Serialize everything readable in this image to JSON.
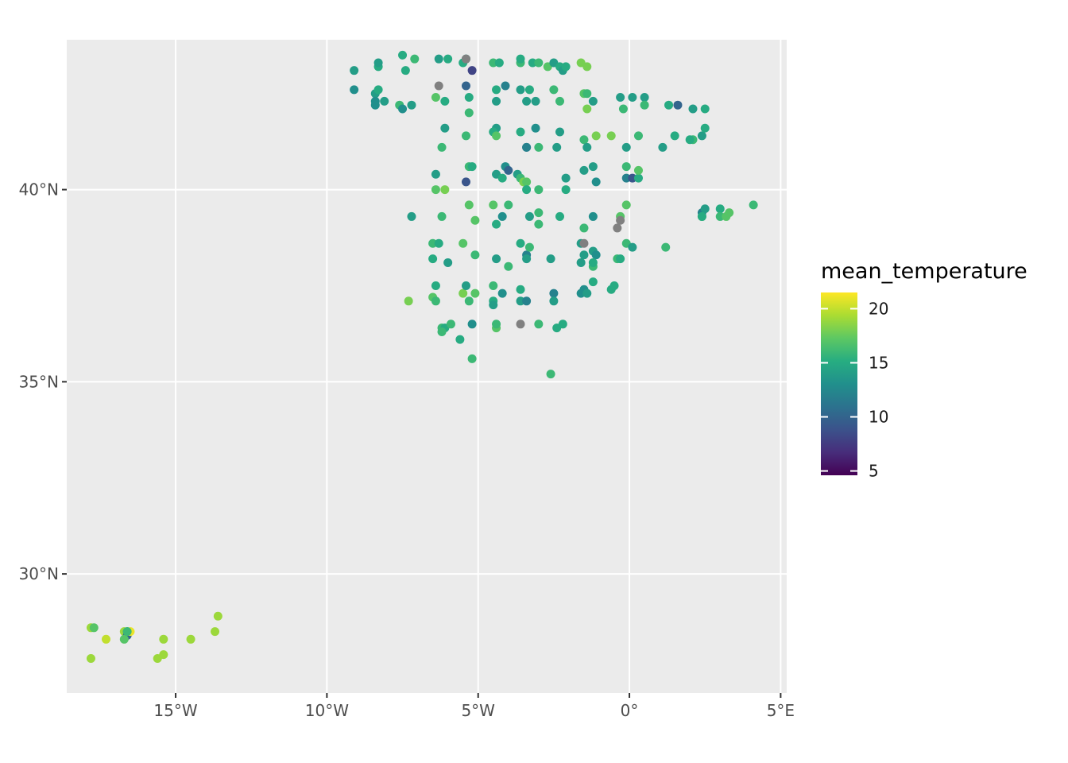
{
  "colors": {
    "panel_background": "#EBEBEB",
    "grid_line": "#FFFFFF",
    "na_value": "#808080",
    "palette": "viridis"
  },
  "axes": {
    "x_ticks": [
      {
        "value": -15,
        "label": "15°W"
      },
      {
        "value": -10,
        "label": "10°W"
      },
      {
        "value": -5,
        "label": "5°W"
      },
      {
        "value": 0,
        "label": "0°"
      },
      {
        "value": 5,
        "label": "5°E"
      }
    ],
    "y_ticks": [
      {
        "value": 30,
        "label": "30°N"
      },
      {
        "value": 35,
        "label": "35°N"
      },
      {
        "value": 40,
        "label": "40°N"
      }
    ],
    "xlim": [
      -18.6,
      5.2
    ],
    "ylim": [
      26.9,
      43.9
    ]
  },
  "legend": {
    "title": "mean_temperature",
    "placement": "right",
    "ticks": [
      {
        "value": 20,
        "label": "20"
      },
      {
        "value": 15,
        "label": "15"
      },
      {
        "value": 10,
        "label": "10"
      },
      {
        "value": 5,
        "label": "5"
      }
    ],
    "min": 4.6,
    "max": 21.5
  },
  "chart_data": {
    "type": "scatter",
    "x_unit": "longitude",
    "y_unit": "latitude",
    "points": [
      {
        "lon": -9.1,
        "lat": 43.1,
        "t": 14
      },
      {
        "lon": -9.1,
        "lat": 42.6,
        "t": 13
      },
      {
        "lon": -8.3,
        "lat": 43.2,
        "t": 15
      },
      {
        "lon": -8.3,
        "lat": 43.3,
        "t": 14
      },
      {
        "lon": -7.5,
        "lat": 43.5,
        "t": 15
      },
      {
        "lon": -7.4,
        "lat": 43.1,
        "t": 15
      },
      {
        "lon": -7.1,
        "lat": 43.4,
        "t": 16
      },
      {
        "lon": -8.4,
        "lat": 42.5,
        "t": 14
      },
      {
        "lon": -8.3,
        "lat": 42.6,
        "t": 15
      },
      {
        "lon": -8.4,
        "lat": 42.3,
        "t": 13
      },
      {
        "lon": -8.4,
        "lat": 42.2,
        "t": 13
      },
      {
        "lon": -8.1,
        "lat": 42.3,
        "t": 14
      },
      {
        "lon": -7.6,
        "lat": 42.2,
        "t": 16
      },
      {
        "lon": -7.5,
        "lat": 42.1,
        "t": 13
      },
      {
        "lon": -7.2,
        "lat": 42.2,
        "t": 14
      },
      {
        "lon": -6.3,
        "lat": 43.4,
        "t": 14
      },
      {
        "lon": -6.0,
        "lat": 43.4,
        "t": 15
      },
      {
        "lon": -5.4,
        "lat": 43.4,
        "t": 14
      },
      {
        "lon": -5.5,
        "lat": 43.3,
        "t": 15
      },
      {
        "lon": -5.4,
        "lat": 43.4,
        "t": null
      },
      {
        "lon": -5.2,
        "lat": 43.1,
        "t": 8
      },
      {
        "lon": -4.5,
        "lat": 43.3,
        "t": 16
      },
      {
        "lon": -4.3,
        "lat": 43.3,
        "t": 15
      },
      {
        "lon": -3.6,
        "lat": 43.3,
        "t": 16
      },
      {
        "lon": -3.6,
        "lat": 43.4,
        "t": 15
      },
      {
        "lon": -3.2,
        "lat": 43.3,
        "t": 15
      },
      {
        "lon": -3.0,
        "lat": 43.3,
        "t": 16
      },
      {
        "lon": -2.7,
        "lat": 43.2,
        "t": 17
      },
      {
        "lon": -2.5,
        "lat": 43.3,
        "t": 14
      },
      {
        "lon": -2.3,
        "lat": 43.2,
        "t": 15
      },
      {
        "lon": -2.2,
        "lat": 43.1,
        "t": 14
      },
      {
        "lon": -2.1,
        "lat": 43.2,
        "t": 15
      },
      {
        "lon": -1.6,
        "lat": 43.3,
        "t": 18
      },
      {
        "lon": -1.4,
        "lat": 43.2,
        "t": 18
      },
      {
        "lon": -6.4,
        "lat": 42.4,
        "t": 17
      },
      {
        "lon": -6.3,
        "lat": 42.7,
        "t": null
      },
      {
        "lon": -5.4,
        "lat": 42.7,
        "t": 10
      },
      {
        "lon": -5.3,
        "lat": 42.4,
        "t": 15
      },
      {
        "lon": -6.1,
        "lat": 42.3,
        "t": 15
      },
      {
        "lon": -5.3,
        "lat": 42.0,
        "t": 16
      },
      {
        "lon": -4.4,
        "lat": 42.6,
        "t": 15
      },
      {
        "lon": -4.1,
        "lat": 42.7,
        "t": 12
      },
      {
        "lon": -3.6,
        "lat": 42.6,
        "t": 14
      },
      {
        "lon": -3.3,
        "lat": 42.6,
        "t": 15
      },
      {
        "lon": -2.5,
        "lat": 42.6,
        "t": 16
      },
      {
        "lon": -4.4,
        "lat": 42.3,
        "t": 14
      },
      {
        "lon": -3.4,
        "lat": 42.3,
        "t": 14
      },
      {
        "lon": -3.1,
        "lat": 42.3,
        "t": 14
      },
      {
        "lon": -2.3,
        "lat": 42.3,
        "t": 16
      },
      {
        "lon": -1.5,
        "lat": 42.5,
        "t": 17
      },
      {
        "lon": -1.4,
        "lat": 42.5,
        "t": 16
      },
      {
        "lon": -1.2,
        "lat": 42.3,
        "t": 14
      },
      {
        "lon": -1.4,
        "lat": 42.1,
        "t": 18
      },
      {
        "lon": -0.3,
        "lat": 42.4,
        "t": 14
      },
      {
        "lon": -0.2,
        "lat": 42.1,
        "t": 16
      },
      {
        "lon": 0.1,
        "lat": 42.4,
        "t": 14
      },
      {
        "lon": 0.5,
        "lat": 42.4,
        "t": 14
      },
      {
        "lon": 0.5,
        "lat": 42.2,
        "t": 16
      },
      {
        "lon": 1.3,
        "lat": 42.2,
        "t": 15
      },
      {
        "lon": 1.6,
        "lat": 42.2,
        "t": 10
      },
      {
        "lon": 2.1,
        "lat": 42.1,
        "t": 14
      },
      {
        "lon": 2.5,
        "lat": 42.1,
        "t": 15
      },
      {
        "lon": -6.1,
        "lat": 41.6,
        "t": 14
      },
      {
        "lon": -5.4,
        "lat": 41.4,
        "t": 16
      },
      {
        "lon": -6.2,
        "lat": 41.1,
        "t": 16
      },
      {
        "lon": -4.4,
        "lat": 41.6,
        "t": 14
      },
      {
        "lon": -4.5,
        "lat": 41.5,
        "t": 15
      },
      {
        "lon": -4.4,
        "lat": 41.4,
        "t": 17
      },
      {
        "lon": -3.6,
        "lat": 41.5,
        "t": 15
      },
      {
        "lon": -3.1,
        "lat": 41.6,
        "t": 13
      },
      {
        "lon": -2.3,
        "lat": 41.5,
        "t": 14
      },
      {
        "lon": -3.4,
        "lat": 41.1,
        "t": 11
      },
      {
        "lon": -3.4,
        "lat": 41.1,
        "t": 12
      },
      {
        "lon": -3.0,
        "lat": 41.1,
        "t": 16
      },
      {
        "lon": -2.4,
        "lat": 41.1,
        "t": 14
      },
      {
        "lon": -1.5,
        "lat": 41.3,
        "t": 16
      },
      {
        "lon": -1.4,
        "lat": 41.1,
        "t": 14
      },
      {
        "lon": -1.1,
        "lat": 41.4,
        "t": 18
      },
      {
        "lon": -0.6,
        "lat": 41.4,
        "t": 18
      },
      {
        "lon": -0.1,
        "lat": 41.1,
        "t": 14
      },
      {
        "lon": 0.3,
        "lat": 41.4,
        "t": 16
      },
      {
        "lon": 1.1,
        "lat": 41.1,
        "t": 14
      },
      {
        "lon": 1.5,
        "lat": 41.4,
        "t": 15
      },
      {
        "lon": 2.1,
        "lat": 41.3,
        "t": 16
      },
      {
        "lon": 2.0,
        "lat": 41.3,
        "t": 15
      },
      {
        "lon": 2.4,
        "lat": 41.4,
        "t": 14
      },
      {
        "lon": 2.5,
        "lat": 41.6,
        "t": 15
      },
      {
        "lon": -5.3,
        "lat": 40.6,
        "t": 16
      },
      {
        "lon": -5.2,
        "lat": 40.6,
        "t": 15
      },
      {
        "lon": -6.4,
        "lat": 40.4,
        "t": 14
      },
      {
        "lon": -5.4,
        "lat": 40.2,
        "t": 9
      },
      {
        "lon": -6.4,
        "lat": 40.0,
        "t": 17
      },
      {
        "lon": -6.1,
        "lat": 40.0,
        "t": 18
      },
      {
        "lon": -4.4,
        "lat": 40.4,
        "t": 14
      },
      {
        "lon": -4.1,
        "lat": 40.6,
        "t": 13
      },
      {
        "lon": -4.0,
        "lat": 40.5,
        "t": 10
      },
      {
        "lon": -4.2,
        "lat": 40.3,
        "t": 15
      },
      {
        "lon": -3.7,
        "lat": 40.4,
        "t": 14
      },
      {
        "lon": -3.6,
        "lat": 40.3,
        "t": 16
      },
      {
        "lon": -3.5,
        "lat": 40.2,
        "t": 18
      },
      {
        "lon": -3.4,
        "lat": 40.2,
        "t": 17
      },
      {
        "lon": -3.4,
        "lat": 40.0,
        "t": 15
      },
      {
        "lon": -3.0,
        "lat": 40.0,
        "t": 16
      },
      {
        "lon": -2.1,
        "lat": 40.3,
        "t": 14
      },
      {
        "lon": -2.1,
        "lat": 40.0,
        "t": 15
      },
      {
        "lon": -1.5,
        "lat": 40.5,
        "t": 14
      },
      {
        "lon": -1.2,
        "lat": 40.6,
        "t": 14
      },
      {
        "lon": -1.1,
        "lat": 40.2,
        "t": 13
      },
      {
        "lon": -0.1,
        "lat": 40.6,
        "t": 16
      },
      {
        "lon": -0.1,
        "lat": 40.3,
        "t": 12
      },
      {
        "lon": 0.1,
        "lat": 40.3,
        "t": 9
      },
      {
        "lon": 0.3,
        "lat": 40.3,
        "t": 15
      },
      {
        "lon": 0.3,
        "lat": 40.5,
        "t": 17
      },
      {
        "lon": -7.2,
        "lat": 39.3,
        "t": 14
      },
      {
        "lon": -6.2,
        "lat": 39.3,
        "t": 16
      },
      {
        "lon": -5.3,
        "lat": 39.6,
        "t": 17
      },
      {
        "lon": -5.1,
        "lat": 39.2,
        "t": 17
      },
      {
        "lon": -4.5,
        "lat": 39.6,
        "t": 17
      },
      {
        "lon": -4.0,
        "lat": 39.6,
        "t": 16
      },
      {
        "lon": -4.2,
        "lat": 39.3,
        "t": 13
      },
      {
        "lon": -4.4,
        "lat": 39.1,
        "t": 15
      },
      {
        "lon": -3.3,
        "lat": 39.3,
        "t": 14
      },
      {
        "lon": -3.0,
        "lat": 39.4,
        "t": 16
      },
      {
        "lon": -3.0,
        "lat": 39.1,
        "t": 16
      },
      {
        "lon": -2.3,
        "lat": 39.3,
        "t": 15
      },
      {
        "lon": -1.5,
        "lat": 39.0,
        "t": 16
      },
      {
        "lon": -1.2,
        "lat": 39.3,
        "t": 13
      },
      {
        "lon": -0.3,
        "lat": 39.3,
        "t": 17
      },
      {
        "lon": -0.3,
        "lat": 39.2,
        "t": null
      },
      {
        "lon": -0.4,
        "lat": 39.0,
        "t": null
      },
      {
        "lon": -0.1,
        "lat": 39.6,
        "t": 17
      },
      {
        "lon": 2.4,
        "lat": 39.3,
        "t": 17
      },
      {
        "lon": 2.4,
        "lat": 39.4,
        "t": 12
      },
      {
        "lon": 2.5,
        "lat": 39.5,
        "t": 14
      },
      {
        "lon": 2.4,
        "lat": 39.3,
        "t": 15
      },
      {
        "lon": 3.0,
        "lat": 39.5,
        "t": 15
      },
      {
        "lon": 3.0,
        "lat": 39.3,
        "t": 16
      },
      {
        "lon": 3.2,
        "lat": 39.3,
        "t": 17
      },
      {
        "lon": 3.3,
        "lat": 39.4,
        "t": 17
      },
      {
        "lon": 4.1,
        "lat": 39.6,
        "t": 16
      },
      {
        "lon": -6.5,
        "lat": 38.6,
        "t": 16
      },
      {
        "lon": -6.3,
        "lat": 38.6,
        "t": 15
      },
      {
        "lon": -6.0,
        "lat": 38.1,
        "t": 14
      },
      {
        "lon": -6.5,
        "lat": 38.2,
        "t": 15
      },
      {
        "lon": -5.5,
        "lat": 38.6,
        "t": 17
      },
      {
        "lon": -5.1,
        "lat": 38.3,
        "t": 16
      },
      {
        "lon": -4.4,
        "lat": 38.2,
        "t": 14
      },
      {
        "lon": -4.0,
        "lat": 38.0,
        "t": 16
      },
      {
        "lon": -3.6,
        "lat": 38.6,
        "t": 15
      },
      {
        "lon": -3.4,
        "lat": 38.3,
        "t": 12
      },
      {
        "lon": -3.3,
        "lat": 38.5,
        "t": 16
      },
      {
        "lon": -3.4,
        "lat": 38.2,
        "t": 14
      },
      {
        "lon": -2.6,
        "lat": 38.2,
        "t": 14
      },
      {
        "lon": -1.6,
        "lat": 38.6,
        "t": 14
      },
      {
        "lon": -1.5,
        "lat": 38.6,
        "t": null
      },
      {
        "lon": -1.5,
        "lat": 38.3,
        "t": 14
      },
      {
        "lon": -1.6,
        "lat": 38.1,
        "t": 14
      },
      {
        "lon": -1.2,
        "lat": 38.4,
        "t": 14
      },
      {
        "lon": -1.1,
        "lat": 38.3,
        "t": 13
      },
      {
        "lon": -1.2,
        "lat": 38.0,
        "t": 16
      },
      {
        "lon": -1.2,
        "lat": 38.1,
        "t": 15
      },
      {
        "lon": -0.4,
        "lat": 38.2,
        "t": 16
      },
      {
        "lon": -0.3,
        "lat": 38.2,
        "t": 15
      },
      {
        "lon": -0.1,
        "lat": 38.6,
        "t": 16
      },
      {
        "lon": 0.1,
        "lat": 38.5,
        "t": 14
      },
      {
        "lon": 1.2,
        "lat": 38.5,
        "t": 16
      },
      {
        "lon": -7.3,
        "lat": 37.1,
        "t": 18
      },
      {
        "lon": -6.5,
        "lat": 37.2,
        "t": 17
      },
      {
        "lon": -6.4,
        "lat": 37.1,
        "t": 16
      },
      {
        "lon": -6.4,
        "lat": 37.5,
        "t": 15
      },
      {
        "lon": -5.5,
        "lat": 37.3,
        "t": 18
      },
      {
        "lon": -5.4,
        "lat": 37.5,
        "t": 14
      },
      {
        "lon": -5.3,
        "lat": 37.1,
        "t": 16
      },
      {
        "lon": -5.1,
        "lat": 37.3,
        "t": 17
      },
      {
        "lon": -4.5,
        "lat": 37.5,
        "t": 16
      },
      {
        "lon": -4.2,
        "lat": 37.3,
        "t": 13
      },
      {
        "lon": -4.5,
        "lat": 37.1,
        "t": 15
      },
      {
        "lon": -4.5,
        "lat": 37.0,
        "t": 14
      },
      {
        "lon": -3.6,
        "lat": 37.4,
        "t": 15
      },
      {
        "lon": -3.6,
        "lat": 37.1,
        "t": 14
      },
      {
        "lon": -3.4,
        "lat": 37.1,
        "t": 12
      },
      {
        "lon": -2.5,
        "lat": 37.3,
        "t": 12
      },
      {
        "lon": -2.5,
        "lat": 37.1,
        "t": 14
      },
      {
        "lon": -1.6,
        "lat": 37.3,
        "t": 13
      },
      {
        "lon": -1.5,
        "lat": 37.4,
        "t": 13
      },
      {
        "lon": -1.4,
        "lat": 37.3,
        "t": 14
      },
      {
        "lon": -1.2,
        "lat": 37.6,
        "t": 15
      },
      {
        "lon": -0.6,
        "lat": 37.4,
        "t": 15
      },
      {
        "lon": -0.5,
        "lat": 37.5,
        "t": 15
      },
      {
        "lon": -6.2,
        "lat": 36.4,
        "t": 16
      },
      {
        "lon": -6.1,
        "lat": 36.4,
        "t": 15
      },
      {
        "lon": -6.2,
        "lat": 36.3,
        "t": 16
      },
      {
        "lon": -5.9,
        "lat": 36.5,
        "t": 16
      },
      {
        "lon": -5.6,
        "lat": 36.1,
        "t": 15
      },
      {
        "lon": -5.2,
        "lat": 36.5,
        "t": 13
      },
      {
        "lon": -4.4,
        "lat": 36.4,
        "t": 17
      },
      {
        "lon": -4.4,
        "lat": 36.5,
        "t": 16
      },
      {
        "lon": -3.6,
        "lat": 36.5,
        "t": null
      },
      {
        "lon": -3.0,
        "lat": 36.5,
        "t": 16
      },
      {
        "lon": -2.4,
        "lat": 36.4,
        "t": 15
      },
      {
        "lon": -2.2,
        "lat": 36.5,
        "t": 15
      },
      {
        "lon": -5.2,
        "lat": 35.6,
        "t": 16
      },
      {
        "lon": -2.6,
        "lat": 35.2,
        "t": 16
      },
      {
        "lon": -17.8,
        "lat": 28.6,
        "t": 19
      },
      {
        "lon": -17.7,
        "lat": 28.6,
        "t": 17
      },
      {
        "lon": -17.3,
        "lat": 28.3,
        "t": 20
      },
      {
        "lon": -17.8,
        "lat": 27.8,
        "t": 19
      },
      {
        "lon": -16.7,
        "lat": 28.5,
        "t": 19
      },
      {
        "lon": -16.6,
        "lat": 28.5,
        "t": 15
      },
      {
        "lon": -16.6,
        "lat": 28.4,
        "t": 10
      },
      {
        "lon": -16.5,
        "lat": 28.5,
        "t": 21
      },
      {
        "lon": -16.7,
        "lat": 28.3,
        "t": 17
      },
      {
        "lon": -16.6,
        "lat": 28.5,
        "t": 16
      },
      {
        "lon": -15.6,
        "lat": 27.8,
        "t": 19
      },
      {
        "lon": -15.4,
        "lat": 27.9,
        "t": 19
      },
      {
        "lon": -15.4,
        "lat": 28.3,
        "t": 19
      },
      {
        "lon": -14.5,
        "lat": 28.3,
        "t": 19
      },
      {
        "lon": -13.7,
        "lat": 28.5,
        "t": 19
      },
      {
        "lon": -13.6,
        "lat": 28.9,
        "t": 19
      }
    ]
  }
}
